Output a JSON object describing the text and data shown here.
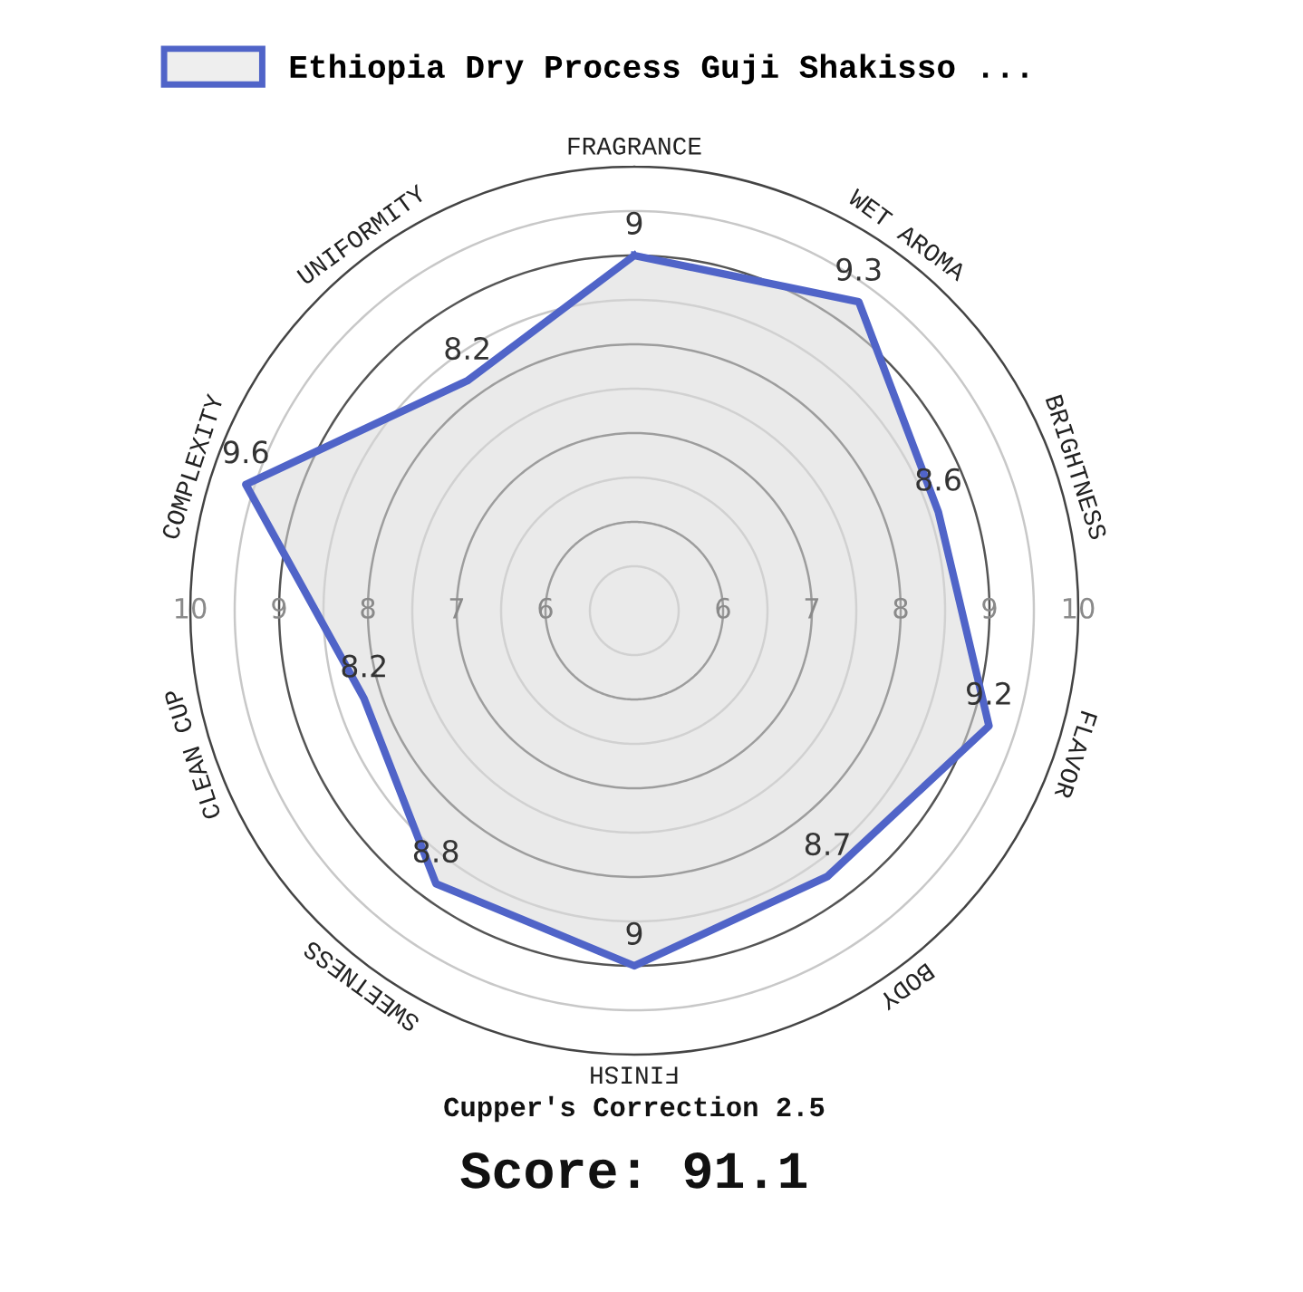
{
  "chart_data": {
    "type": "radar",
    "categories": [
      "FRAGRANCE",
      "WET AROMA",
      "BRIGHTNESS",
      "FLAVOR",
      "BODY",
      "FINISH",
      "SWEETNESS",
      "CLEAN CUP",
      "COMPLEXITY",
      "UNIFORMITY"
    ],
    "series": [
      {
        "name": "Ethiopia Dry Process Guji Shakisso ...",
        "color": "#5064c8",
        "values": [
          9,
          9.3,
          8.6,
          9.2,
          8.7,
          9,
          8.8,
          8.2,
          9.6,
          8.2
        ]
      }
    ],
    "ylim": [
      5,
      10
    ],
    "yticks": [
      10,
      9,
      8,
      7,
      6,
      6,
      7,
      8,
      9,
      10
    ],
    "data_labels": true,
    "legend": "top",
    "annotations": [
      "Cupper's Correction 2.5",
      "Score: 91.1"
    ]
  }
}
